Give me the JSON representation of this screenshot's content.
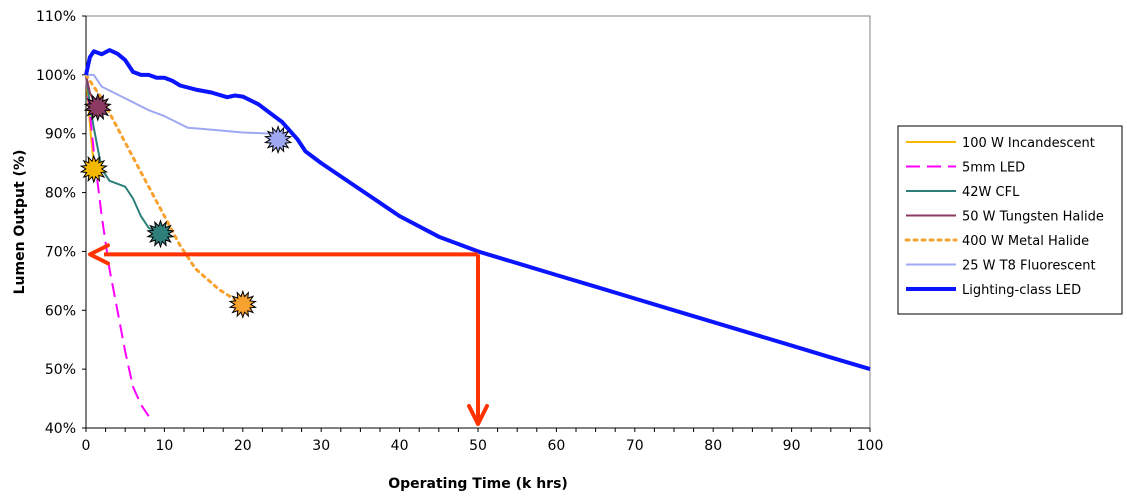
{
  "chart_data": {
    "type": "line",
    "title": "",
    "xlabel": "Operating Time (k hrs)",
    "ylabel": "Lumen Output (%)",
    "xlim": [
      0,
      100
    ],
    "ylim": [
      40,
      110
    ],
    "x_ticks": [
      0,
      10,
      20,
      30,
      40,
      50,
      60,
      70,
      80,
      90,
      100
    ],
    "y_ticks": [
      40,
      50,
      60,
      70,
      80,
      90,
      100,
      110
    ],
    "y_tick_labels": [
      "40%",
      "50%",
      "60%",
      "70%",
      "80%",
      "90%",
      "100%",
      "110%"
    ],
    "grid": true,
    "legend_position": "right",
    "series": [
      {
        "name": "100 W Incandescent",
        "color": "#f5b800",
        "style": "solid",
        "points": [
          [
            0,
            100
          ],
          [
            0.3,
            95
          ],
          [
            0.6,
            90
          ],
          [
            0.9,
            86
          ],
          [
            1.2,
            84
          ]
        ],
        "end_marker": [
          1.0,
          84
        ]
      },
      {
        "name": "5mm LED",
        "color": "#ff00ff",
        "style": "dashed",
        "points": [
          [
            0,
            100
          ],
          [
            1,
            87
          ],
          [
            2,
            76
          ],
          [
            3,
            67
          ],
          [
            4,
            60
          ],
          [
            5,
            53
          ],
          [
            6,
            47
          ],
          [
            7,
            44
          ],
          [
            8,
            42
          ]
        ]
      },
      {
        "name": "42W CFL",
        "color": "#2e7f7a",
        "style": "solid",
        "points": [
          [
            0,
            100
          ],
          [
            0.5,
            95
          ],
          [
            1,
            91
          ],
          [
            2,
            84
          ],
          [
            3,
            82
          ],
          [
            5,
            81
          ],
          [
            6,
            79
          ],
          [
            7,
            76
          ],
          [
            8,
            74
          ],
          [
            9.5,
            73
          ]
        ],
        "end_marker": [
          9.5,
          73
        ]
      },
      {
        "name": "50 W Tungsten Halide",
        "color": "#8b3a62",
        "style": "solid",
        "points": [
          [
            0,
            100
          ],
          [
            0.5,
            97
          ],
          [
            1,
            95.5
          ],
          [
            1.5,
            94.7
          ]
        ],
        "end_marker": [
          1.5,
          94.5
        ]
      },
      {
        "name": "400 W Metal Halide",
        "color": "#f7a12e",
        "style": "dotted",
        "points": [
          [
            0,
            100
          ],
          [
            2,
            96
          ],
          [
            4,
            91
          ],
          [
            6,
            86
          ],
          [
            8,
            81
          ],
          [
            10,
            76
          ],
          [
            12,
            71
          ],
          [
            14,
            67
          ],
          [
            17,
            63.5
          ],
          [
            20,
            61
          ]
        ],
        "end_marker": [
          20,
          61
        ]
      },
      {
        "name": "25 W T8 Fluorescent",
        "color": "#9fa8f2",
        "style": "solid",
        "points": [
          [
            0,
            100
          ],
          [
            1,
            100
          ],
          [
            2,
            98
          ],
          [
            5,
            96
          ],
          [
            8,
            94
          ],
          [
            10,
            93
          ],
          [
            13,
            91
          ],
          [
            15,
            90.8
          ],
          [
            20,
            90.2
          ],
          [
            24,
            90
          ],
          [
            25,
            89
          ]
        ],
        "end_marker": [
          24.5,
          89
        ]
      },
      {
        "name": "Lighting-class LED",
        "color": "#0a14ff",
        "style": "solid-thick",
        "points": [
          [
            0,
            100
          ],
          [
            0.5,
            103
          ],
          [
            1,
            104
          ],
          [
            2,
            103.5
          ],
          [
            3,
            104.2
          ],
          [
            4,
            103.6
          ],
          [
            5,
            102.5
          ],
          [
            6,
            100.5
          ],
          [
            7,
            100
          ],
          [
            8,
            100
          ],
          [
            9,
            99.5
          ],
          [
            10,
            99.5
          ],
          [
            11,
            99
          ],
          [
            12,
            98.2
          ],
          [
            14,
            97.5
          ],
          [
            16,
            97
          ],
          [
            18,
            96.2
          ],
          [
            19,
            96.5
          ],
          [
            20,
            96.3
          ],
          [
            22,
            95
          ],
          [
            24,
            93
          ],
          [
            25,
            92
          ],
          [
            27,
            89
          ],
          [
            28,
            87
          ],
          [
            30,
            85
          ],
          [
            35,
            80.5
          ],
          [
            40,
            76
          ],
          [
            45,
            72.5
          ],
          [
            50,
            70
          ],
          [
            55,
            68
          ],
          [
            60,
            66
          ],
          [
            65,
            64
          ],
          [
            70,
            62
          ],
          [
            75,
            60
          ],
          [
            80,
            58
          ],
          [
            85,
            56
          ],
          [
            90,
            54
          ],
          [
            95,
            52
          ],
          [
            100,
            50
          ]
        ]
      }
    ],
    "annotation_arrows": {
      "color": "#ff3300",
      "horizontal": {
        "from": [
          50,
          69.5
        ],
        "to": [
          0,
          69.5
        ]
      },
      "vertical": {
        "from": [
          50,
          69.5
        ],
        "to": [
          50,
          40
        ]
      }
    }
  }
}
